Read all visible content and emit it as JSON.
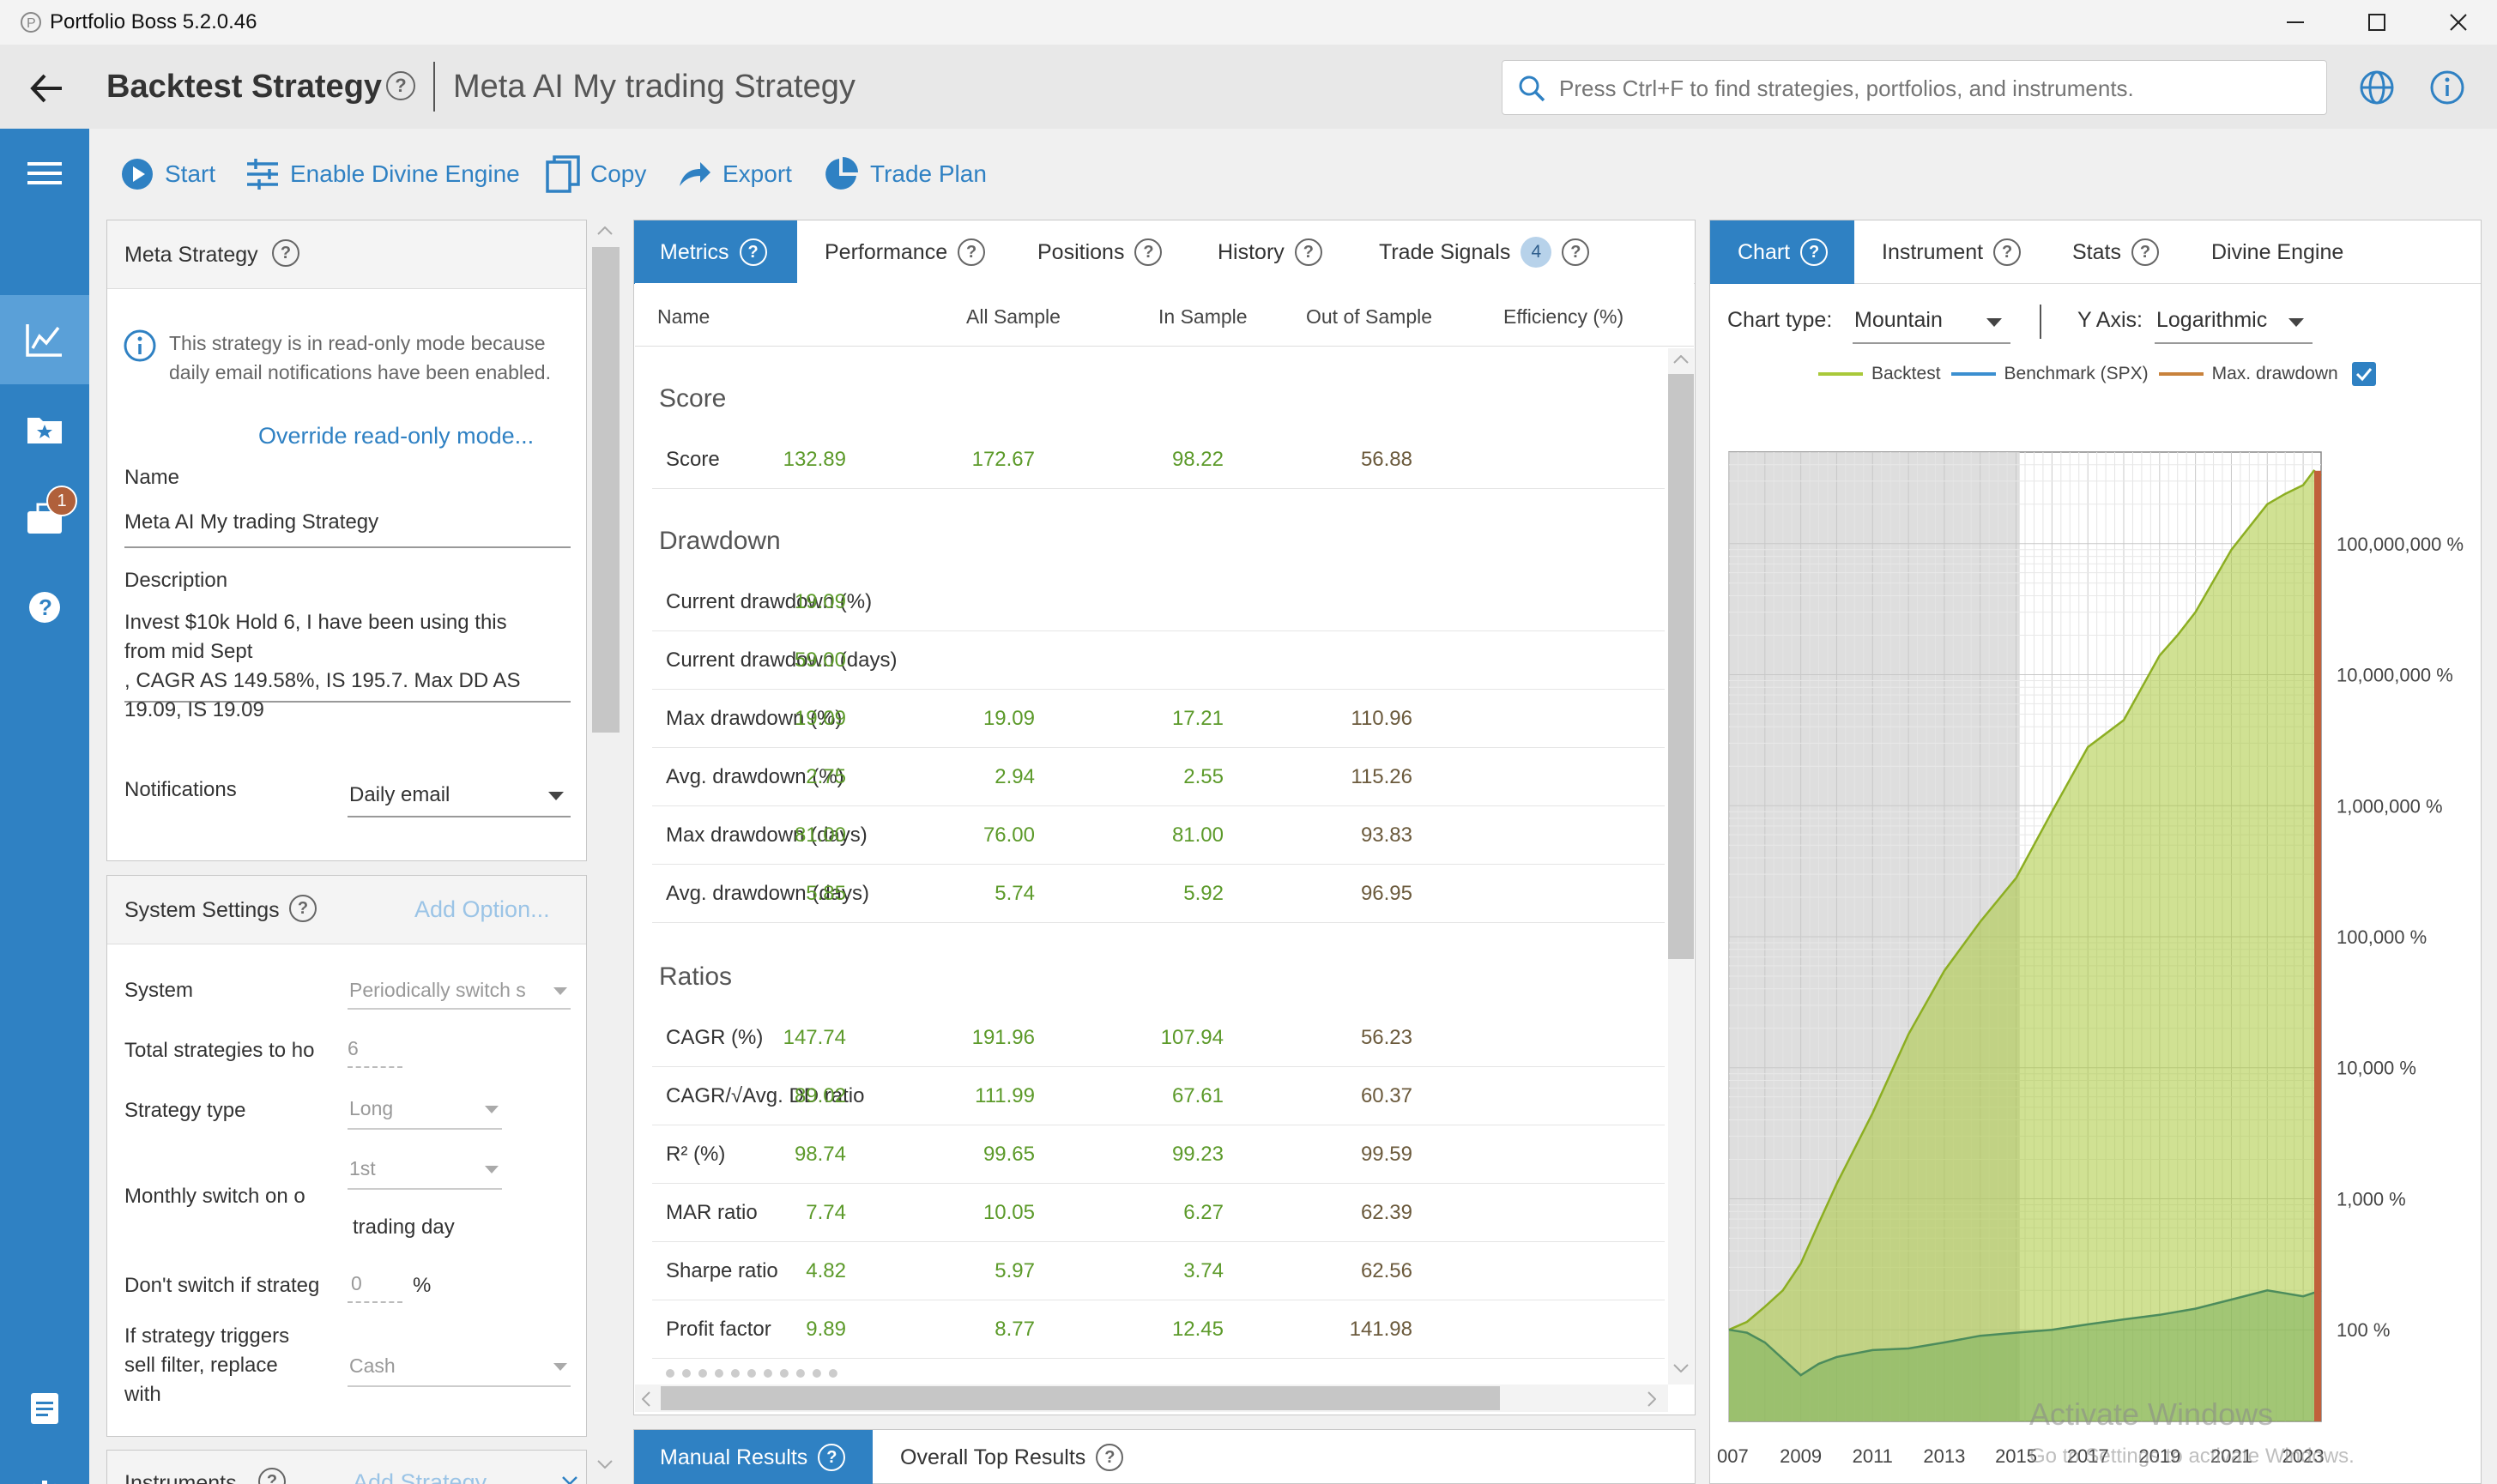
{
  "titlebar": {
    "app_title": "Portfolio Boss 5.2.0.46"
  },
  "header": {
    "page_title": "Backtest Strategy",
    "strategy_name": "Meta AI My trading Strategy",
    "search_placeholder": "Press Ctrl+F to find strategies, portfolios, and instruments."
  },
  "sidebar": {
    "notification_count": "1"
  },
  "toolbar": {
    "start": "Start",
    "divine": "Enable Divine Engine",
    "copy": "Copy",
    "export": "Export",
    "trade_plan": "Trade Plan"
  },
  "meta": {
    "header": "Meta Strategy",
    "readonly_notice": "This strategy is in read-only mode because daily email notifications have been enabled.",
    "override_link": "Override read-only mode...",
    "name_label": "Name",
    "name_value": "Meta AI My trading Strategy",
    "description_label": "Description",
    "description_lines": [
      "Invest $10k Hold 6, I have been using this",
      "from mid Sept",
      ", CAGR  AS 149.58%,  IS 195.7. Max DD AS",
      "19.09, IS 19.09"
    ],
    "notifications_label": "Notifications",
    "notifications_value": "Daily email"
  },
  "system": {
    "header": "System Settings",
    "add_option": "Add Option...",
    "system_label": "System",
    "system_value": "Periodically switch s",
    "total_label": "Total strategies to ho",
    "total_value": "6",
    "type_label": "Strategy type",
    "type_value": "Long",
    "monthly_label": "Monthly switch on o",
    "monthly_value": "1st",
    "trading_day": "trading day",
    "dont_switch_label": "Don't switch if strateg",
    "dont_switch_value": "0",
    "percent": "%",
    "sell_filter_lines": [
      "If strategy triggers",
      "sell filter, replace",
      "with"
    ],
    "sell_filter_value": "Cash"
  },
  "instruments": {
    "header": "Instruments",
    "add_strategy": "Add Strategy..."
  },
  "metrics": {
    "tabs": [
      "Metrics",
      "Performance",
      "Positions",
      "History",
      "Trade Signals"
    ],
    "trade_signals_count": "4",
    "columns": [
      "Name",
      "All Sample",
      "In Sample",
      "Out of Sample",
      "Efficiency (%)"
    ],
    "sections": [
      "Score",
      "Drawdown",
      "Ratios"
    ],
    "score_rows": [
      {
        "name": "Score",
        "all": "132.89",
        "ins": "172.67",
        "oos": "98.22",
        "eff": "56.88"
      }
    ],
    "drawdown_rows": [
      {
        "name": "Current drawdown (%)",
        "all": "19.09",
        "ins": "",
        "oos": "",
        "eff": ""
      },
      {
        "name": "Current drawdown (days)",
        "all": "59.00",
        "ins": "",
        "oos": "",
        "eff": ""
      },
      {
        "name": "Max drawdown (%)",
        "all": "19.09",
        "ins": "19.09",
        "oos": "17.21",
        "eff": "110.96"
      },
      {
        "name": "Avg. drawdown (%)",
        "all": "2.75",
        "ins": "2.94",
        "oos": "2.55",
        "eff": "115.26"
      },
      {
        "name": "Max drawdown (days)",
        "all": "81.00",
        "ins": "76.00",
        "oos": "81.00",
        "eff": "93.83"
      },
      {
        "name": "Avg. drawdown (days)",
        "all": "5.85",
        "ins": "5.74",
        "oos": "5.92",
        "eff": "96.95"
      }
    ],
    "ratio_rows": [
      {
        "name": "CAGR (%)",
        "all": "147.74",
        "ins": "191.96",
        "oos": "107.94",
        "eff": "56.23"
      },
      {
        "name": "CAGR/√Avg. DD ratio",
        "all": "89.02",
        "ins": "111.99",
        "oos": "67.61",
        "eff": "60.37"
      },
      {
        "name": "R² (%)",
        "all": "98.74",
        "ins": "99.65",
        "oos": "99.23",
        "eff": "99.59"
      },
      {
        "name": "MAR ratio",
        "all": "7.74",
        "ins": "10.05",
        "oos": "6.27",
        "eff": "62.39"
      },
      {
        "name": "Sharpe ratio",
        "all": "4.82",
        "ins": "5.97",
        "oos": "3.74",
        "eff": "62.56"
      },
      {
        "name": "Profit factor",
        "all": "9.89",
        "ins": "8.77",
        "oos": "12.45",
        "eff": "141.98"
      }
    ]
  },
  "bottom_tabs": {
    "manual": "Manual Results",
    "overall": "Overall Top Results"
  },
  "chart_panel": {
    "tabs": [
      "Chart",
      "Instrument",
      "Stats",
      "Divine Engine"
    ],
    "chart_type_label": "Chart type:",
    "chart_type_value": "Mountain",
    "y_axis_label": "Y Axis:",
    "y_axis_value": "Logarithmic",
    "watermark_line1": "Activate Windows",
    "watermark_line2": "Go to Settings to activate Windows."
  },
  "chart_data": {
    "type": "area",
    "y_scale": "log",
    "legend": [
      "Backtest",
      "Benchmark (SPX)",
      "Max. drawdown"
    ],
    "legend_placement": "top",
    "colors": {
      "backtest": "#a9c93a",
      "benchmark": "#3b8fd0",
      "max_drawdown": "#c8823c",
      "in_sample_shade": "#d8d8d8"
    },
    "x_ticks": [
      "007",
      "2009",
      "2011",
      "2013",
      "2015",
      "2017",
      "2019",
      "2021",
      "2023"
    ],
    "y_ticks": [
      "100 %",
      "1,000 %",
      "10,000 %",
      "100,000 %",
      "1,000,000 %",
      "10,000,000 %",
      "100,000,000 %"
    ],
    "xlim": [
      2007,
      2023.5
    ],
    "ylim_pct": [
      20,
      500000000
    ],
    "in_sample_end": 2015.1,
    "series": [
      {
        "name": "Backtest",
        "x": [
          2007,
          2007.5,
          2008,
          2008.5,
          2009,
          2009.5,
          2010,
          2011,
          2012,
          2013,
          2014,
          2015,
          2016,
          2017,
          2018,
          2019,
          2019.5,
          2020,
          2021,
          2022,
          2022.5,
          2023,
          2023.3,
          2023.5
        ],
        "y": [
          100,
          115,
          150,
          200,
          320,
          650,
          1300,
          4500,
          18000,
          55000,
          130000,
          280000,
          900000,
          2800000,
          4500000,
          14000000,
          20000000,
          30000000,
          90000000,
          200000000,
          240000000,
          280000000,
          360000000,
          330000000
        ]
      },
      {
        "name": "Benchmark (SPX)",
        "x": [
          2007,
          2007.5,
          2008,
          2008.5,
          2009,
          2009.5,
          2010,
          2011,
          2012,
          2013,
          2014,
          2015,
          2016,
          2017,
          2018,
          2019,
          2020,
          2021,
          2022,
          2022.5,
          2023,
          2023.5
        ],
        "y": [
          100,
          95,
          80,
          60,
          45,
          55,
          62,
          70,
          72,
          80,
          90,
          95,
          100,
          110,
          120,
          130,
          145,
          170,
          200,
          190,
          180,
          200
        ]
      }
    ]
  }
}
